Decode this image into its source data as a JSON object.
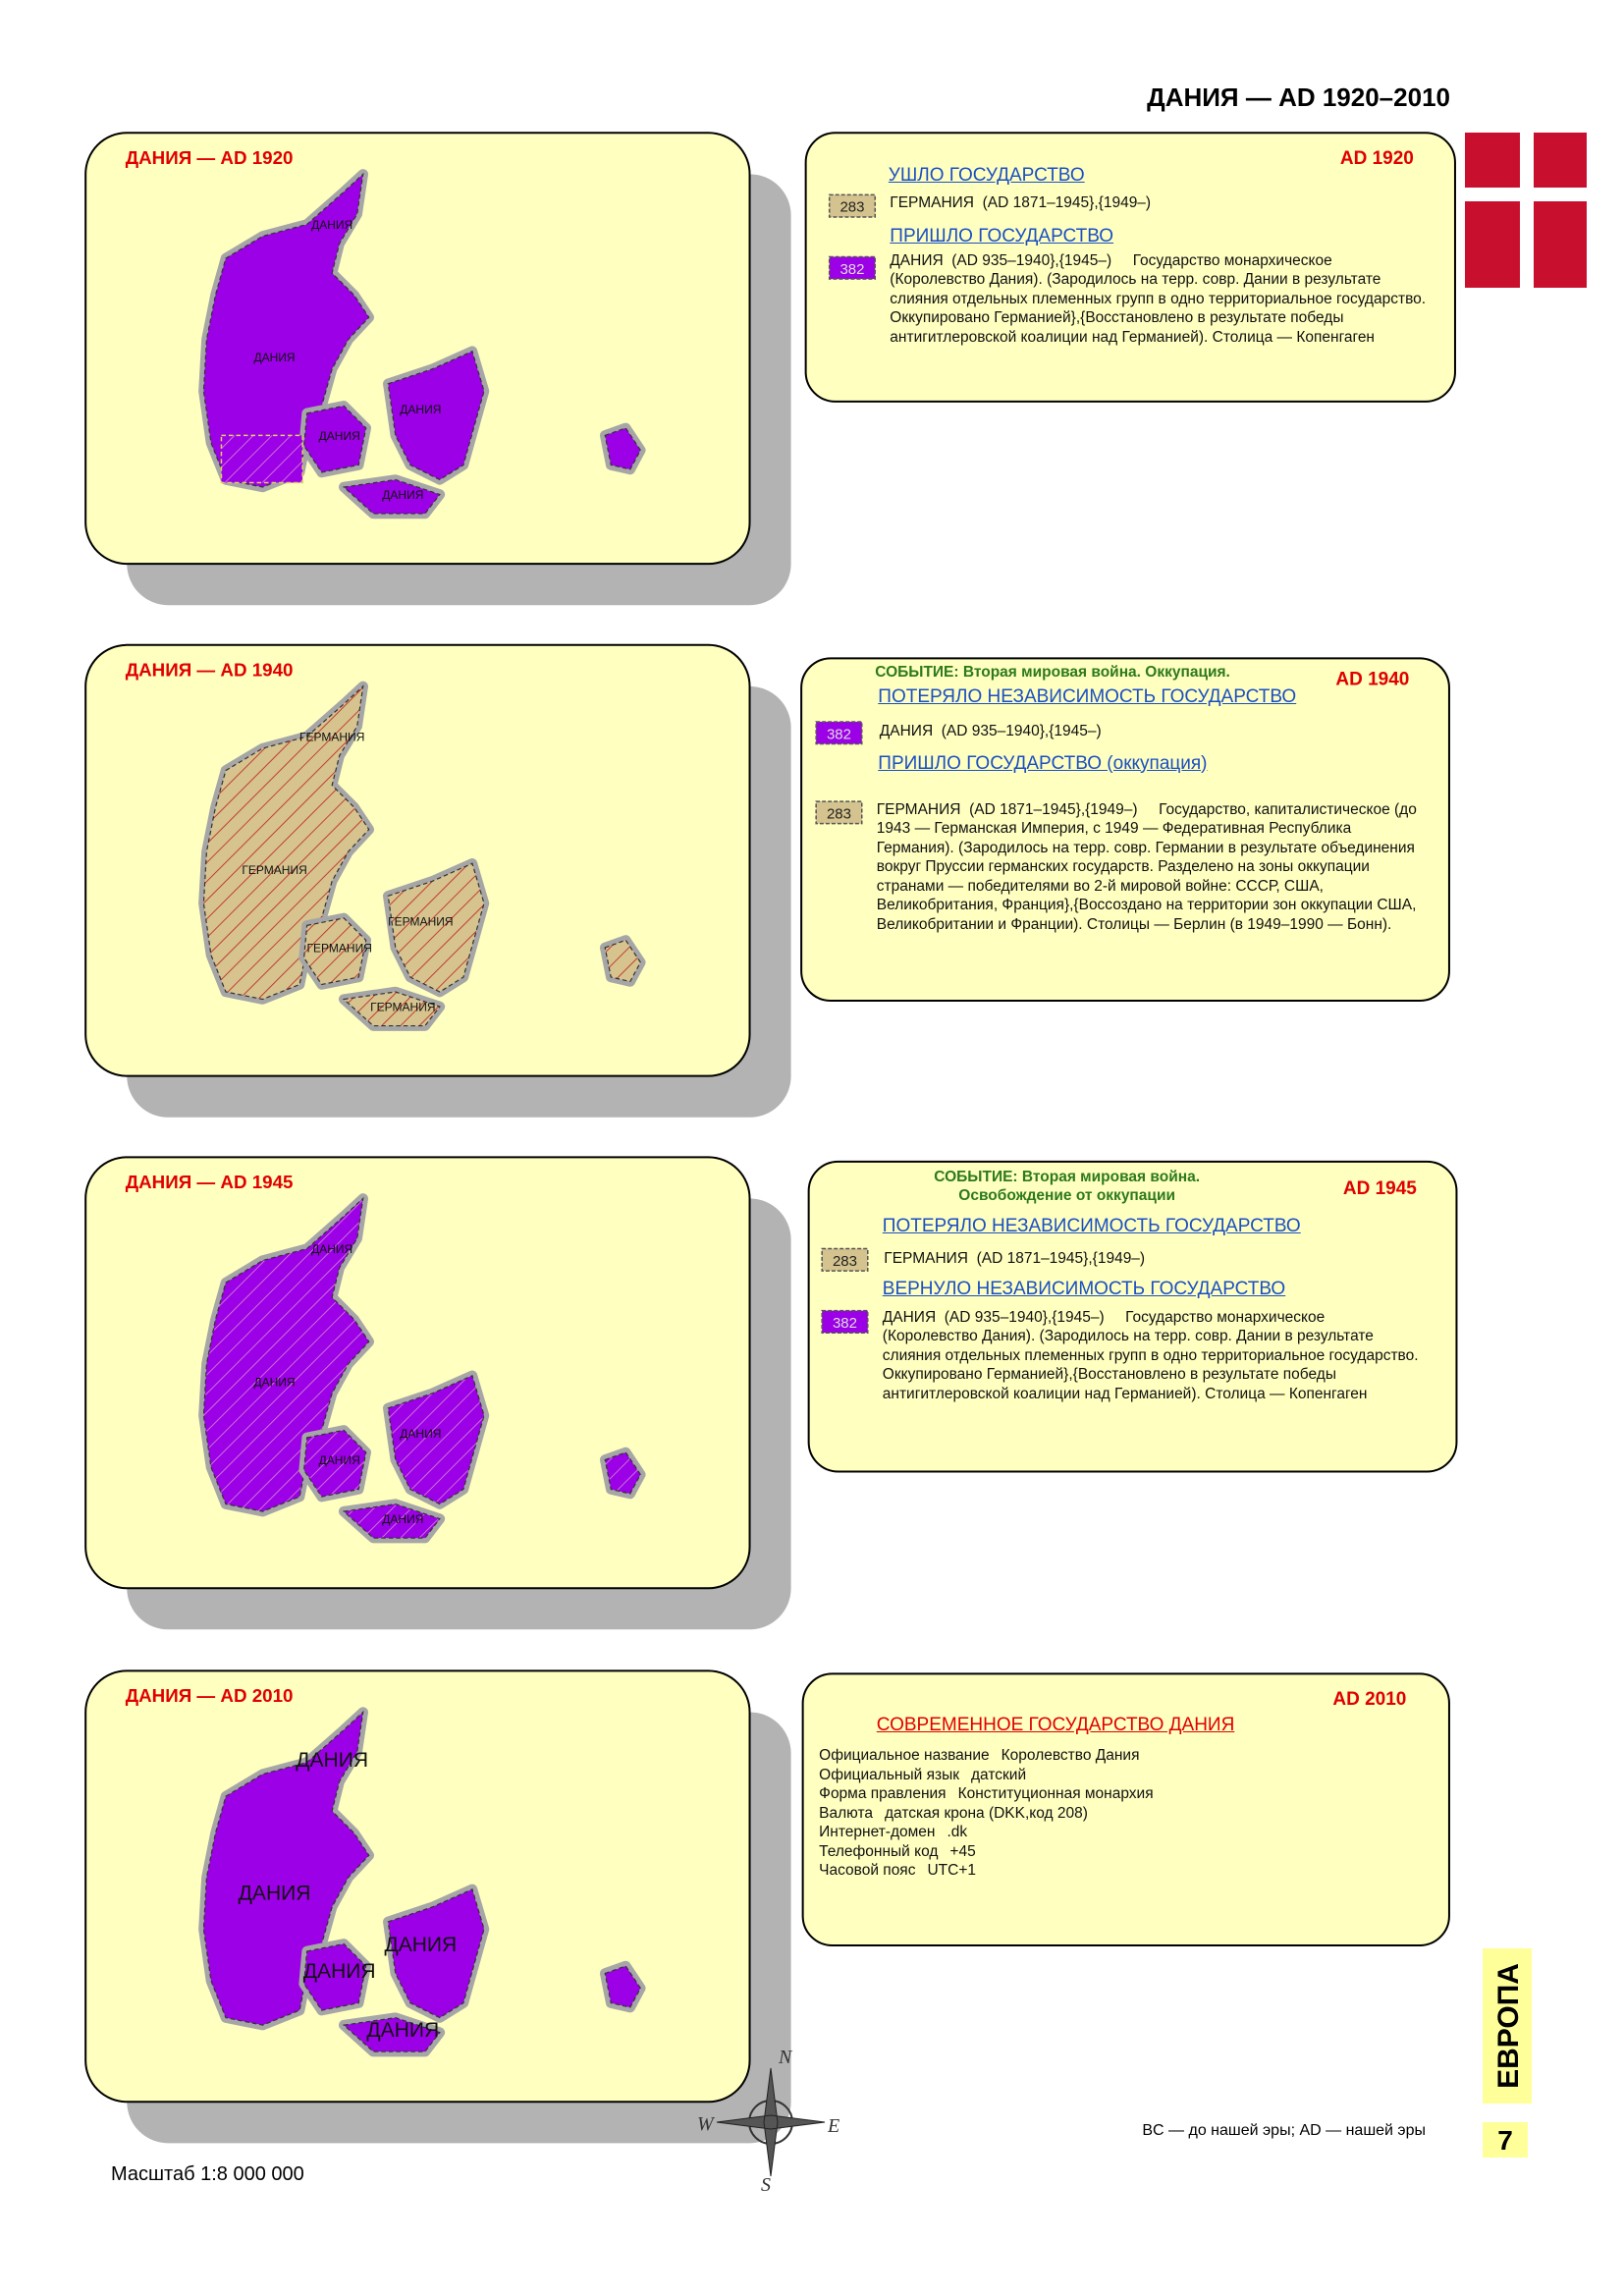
{
  "header": {
    "title": "ДАНИЯ — AD 1920–2010"
  },
  "maps": [
    {
      "title": "ДАНИЯ — AD 1920",
      "labels": [
        "ДАНИЯ",
        "ДАНИЯ",
        "ДАНИЯ",
        "ДАНИЯ",
        "ДАНИЯ"
      ]
    },
    {
      "title": "ДАНИЯ — AD 1940",
      "labels": [
        "ГЕРМАНИЯ",
        "ГЕРМАНИЯ",
        "ГЕРМАНИЯ",
        "ГЕРМАНИЯ",
        "ГЕРМАНИЯ"
      ]
    },
    {
      "title": "ДАНИЯ — AD 1945",
      "labels": [
        "ДАНИЯ",
        "ДАНИЯ",
        "ДАНИЯ",
        "ДАНИЯ",
        "ДАНИЯ"
      ]
    },
    {
      "title": "ДАНИЯ — AD 2010",
      "labels": [
        "ДАНИЯ",
        "ДАНИЯ",
        "ДАНИЯ",
        "ДАНИЯ",
        "ДАНИЯ"
      ]
    }
  ],
  "info": [
    {
      "year": "AD 1920",
      "sections": [
        {
          "heading": "УШЛО ГОСУДАРСТВО",
          "code": "283",
          "text": "ГЕРМАНИЯ  (AD 1871–1945},{1949–)"
        },
        {
          "heading": "ПРИШЛО ГОСУДАРСТВО",
          "code": "382",
          "text": "ДАНИЯ  (AD 935–1940},{1945–)     Государство монархическое (Королевство Дания). (Зародилось на терр. совр. Дании в результате слияния отдельных племенных групп в одно территориальное государство. Оккупировано Германией},{Восстановлено в результате победы антигитлеровской коалиции над Германией). Столица — Копенгаген"
        }
      ]
    },
    {
      "year": "AD 1940",
      "event": "СОБЫТИЕ: Вторая мировая война. Оккупация.",
      "sections": [
        {
          "heading": "ПОТЕРЯЛО НЕЗАВИСИМОСТЬ ГОСУДАРСТВО",
          "code": "382",
          "text": "ДАНИЯ  (AD 935–1940},{1945–)"
        },
        {
          "heading": "ПРИШЛО ГОСУДАРСТВО (оккупация)",
          "code": "283",
          "text": "ГЕРМАНИЯ  (AD 1871–1945},{1949–)     Государство, капиталистическое (до 1943 — Германская Империя, с 1949 — Федеративная Республика Германия). (Зародилось на терр. совр. Германии в результате объединения вокруг Пруссии германских государств. Разделено на зоны оккупации странами — победителями во 2-й мировой войне: СССР, США, Великобритания, Франция},{Воссоздано на территории зон оккупации США, Великобритании и Франции). Столицы — Берлин (в 1949–1990 — Бонн)."
        }
      ]
    },
    {
      "year": "AD 1945",
      "event": "СОБЫТИЕ: Вторая мировая война. Освобождение от оккупации",
      "sections": [
        {
          "heading": "ПОТЕРЯЛО НЕЗАВИСИМОСТЬ ГОСУДАРСТВО",
          "code": "283",
          "text": "ГЕРМАНИЯ  (AD 1871–1945},{1949–)"
        },
        {
          "heading": "ВЕРНУЛО НЕЗАВИСИМОСТЬ ГОСУДАРСТВО",
          "code": "382",
          "text": "ДАНИЯ  (AD 935–1940},{1945–)     Государство монархическое (Королевство Дания). (Зародилось на терр. совр. Дании в результате слияния отдельных племенных групп в одно территориальное государство. Оккупировано Германией},{Восстановлено в результате победы антигитлеровской коалиции над Германией). Столица — Копенгаген"
        }
      ]
    },
    {
      "year": "AD 2010",
      "heading": "СОВРЕМЕННОЕ ГОСУДАРСТВО ДАНИЯ",
      "facts": [
        [
          "Официальное название",
          "Королевство Дания"
        ],
        [
          "Официальный язык",
          "датский"
        ],
        [
          "Форма правления",
          "Конституционная монархия"
        ],
        [
          "Валюта",
          "датская крона (DKK,код 208)"
        ],
        [
          "Интернет-домен",
          ".dk"
        ],
        [
          "Телефонный код",
          "+45"
        ],
        [
          "Часовой пояс",
          "UTC+1"
        ]
      ]
    }
  ],
  "footer": {
    "section": "ЕВРОПА",
    "page": "7",
    "note": "BC — до нашей эры; AD — нашей эры",
    "scale": "Масштаб 1:8 000 000",
    "compass": [
      "N",
      "W",
      "E",
      "S"
    ]
  }
}
